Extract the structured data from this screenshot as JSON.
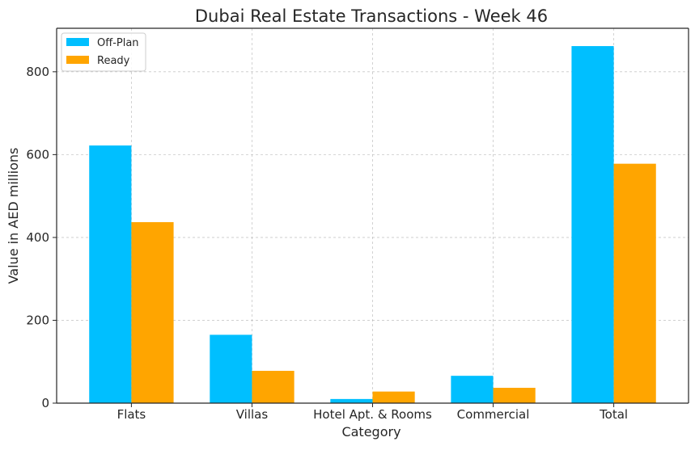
{
  "chart_data": {
    "type": "bar",
    "title": "Dubai Real Estate Transactions - Week 46",
    "xlabel": "Category",
    "ylabel": "Value in AED millions",
    "categories": [
      "Flats",
      "Villas",
      "Hotel Apt. & Rooms",
      "Commercial",
      "Total"
    ],
    "series": [
      {
        "name": "Off-Plan",
        "color": "#00BFFF",
        "values": [
          622,
          165,
          10,
          66,
          862
        ]
      },
      {
        "name": "Ready",
        "color": "#FFA500",
        "values": [
          437,
          78,
          28,
          37,
          578
        ]
      }
    ],
    "ylim": [
      0,
      905
    ],
    "yticks": [
      0,
      200,
      400,
      600,
      800
    ],
    "grid": true,
    "legend_position": "top-left"
  }
}
